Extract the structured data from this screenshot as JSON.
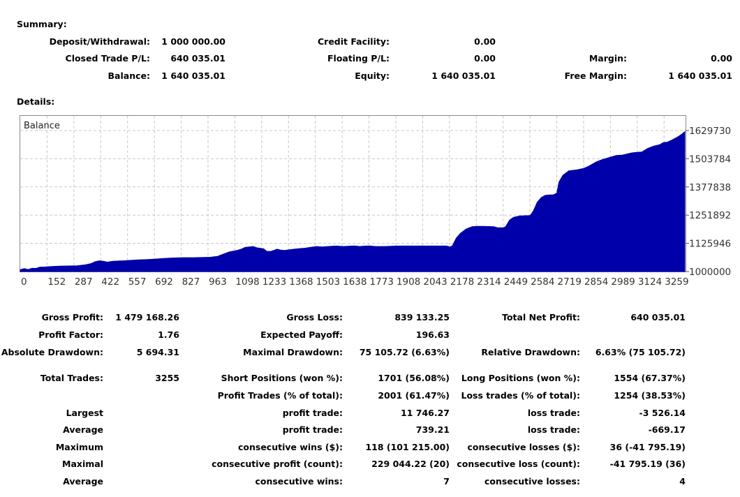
{
  "summary": {
    "title": "Summary:",
    "deposit_label": "Deposit/Withdrawal:",
    "deposit_value": "1 000 000.00",
    "credit_label": "Credit Facility:",
    "credit_value": "0.00",
    "closed_label": "Closed Trade P/L:",
    "closed_value": "640 035.01",
    "floating_label": "Floating P/L:",
    "floating_value": "0.00",
    "margin_label": "Margin:",
    "margin_value": "0.00",
    "balance_label": "Balance:",
    "balance_value": "1 640 035.01",
    "equity_label": "Equity:",
    "equity_value": "1 640 035.01",
    "free_margin_label": "Free Margin:",
    "free_margin_value": "1 640 035.01"
  },
  "details": {
    "title": "Details:"
  },
  "chart_data": {
    "type": "area",
    "title": "Balance",
    "color": "#0000AA",
    "grid": true,
    "x_ticks": [
      "0",
      "152",
      "287",
      "422",
      "557",
      "692",
      "827",
      "963",
      "1098",
      "1233",
      "1368",
      "1503",
      "1638",
      "1773",
      "1908",
      "2043",
      "2178",
      "2314",
      "2449",
      "2584",
      "2719",
      "2854",
      "2989",
      "3124",
      "3259"
    ],
    "y_ticks": [
      "1629730",
      "1503784",
      "1377838",
      "1251892",
      "1125946",
      "1000000"
    ],
    "ylim": [
      1000000,
      1629730
    ],
    "xlim": [
      0,
      3368
    ],
    "x": [
      0,
      20,
      40,
      60,
      80,
      100,
      120,
      152,
      200,
      287,
      330,
      360,
      380,
      400,
      422,
      440,
      470,
      520,
      557,
      600,
      650,
      692,
      720,
      760,
      827,
      880,
      963,
      1000,
      1030,
      1060,
      1098,
      1120,
      1140,
      1160,
      1180,
      1200,
      1215,
      1233,
      1250,
      1270,
      1290,
      1300,
      1320,
      1340,
      1368,
      1390,
      1410,
      1440,
      1470,
      1503,
      1530,
      1560,
      1600,
      1638,
      1680,
      1700,
      1720,
      1750,
      1773,
      1800,
      1850,
      1908,
      1950,
      2000,
      2043,
      2090,
      2130,
      2160,
      2178,
      2190,
      2210,
      2230,
      2260,
      2290,
      2314,
      2350,
      2400,
      2420,
      2449,
      2460,
      2480,
      2500,
      2530,
      2584,
      2600,
      2620,
      2640,
      2660,
      2680,
      2700,
      2719,
      2730,
      2750,
      2780,
      2820,
      2854,
      2880,
      2920,
      2950,
      2989,
      3020,
      3050,
      3080,
      3100,
      3124,
      3150,
      3180,
      3210,
      3240,
      3259,
      3280,
      3300,
      3330,
      3350,
      3368
    ],
    "y": [
      1008000,
      1013000,
      1009000,
      1015000,
      1014000,
      1020000,
      1020000,
      1022000,
      1024000,
      1026000,
      1030000,
      1036000,
      1044000,
      1048000,
      1046000,
      1042000,
      1046000,
      1048000,
      1050000,
      1052000,
      1054000,
      1056000,
      1058000,
      1060000,
      1062000,
      1062000,
      1064000,
      1068000,
      1078000,
      1088000,
      1094000,
      1100000,
      1108000,
      1110000,
      1112000,
      1106000,
      1104000,
      1102000,
      1090000,
      1090000,
      1096000,
      1100000,
      1096000,
      1094000,
      1098000,
      1100000,
      1102000,
      1104000,
      1108000,
      1112000,
      1110000,
      1112000,
      1114000,
      1112000,
      1114000,
      1114000,
      1112000,
      1114000,
      1114000,
      1112000,
      1112000,
      1114000,
      1114000,
      1114000,
      1114000,
      1114000,
      1114000,
      1114000,
      1110000,
      1115000,
      1150000,
      1170000,
      1190000,
      1200000,
      1202000,
      1202000,
      1200000,
      1195000,
      1196000,
      1200000,
      1230000,
      1242000,
      1248000,
      1250000,
      1270000,
      1310000,
      1330000,
      1340000,
      1342000,
      1342000,
      1350000,
      1400000,
      1430000,
      1450000,
      1454000,
      1460000,
      1470000,
      1490000,
      1500000,
      1510000,
      1518000,
      1520000,
      1526000,
      1530000,
      1532000,
      1534000,
      1550000,
      1560000,
      1566000,
      1576000,
      1578000,
      1586000,
      1600000,
      1612000,
      1625000
    ]
  },
  "stats": {
    "gross_profit_label": "Gross Profit:",
    "gross_profit_value": "1 479 168.26",
    "gross_loss_label": "Gross Loss:",
    "gross_loss_value": "839 133.25",
    "total_net_label": "Total Net Profit:",
    "total_net_value": "640 035.01",
    "profit_factor_label": "Profit Factor:",
    "profit_factor_value": "1.76",
    "expected_payoff_label": "Expected Payoff:",
    "expected_payoff_value": "196.63",
    "abs_dd_label": "Absolute Drawdown:",
    "abs_dd_value": "5 694.31",
    "max_dd_label": "Maximal Drawdown:",
    "max_dd_value": "75 105.72 (6.63%)",
    "rel_dd_label": "Relative Drawdown:",
    "rel_dd_value": "6.63% (75 105.72)",
    "total_trades_label": "Total Trades:",
    "total_trades_value": "3255",
    "short_label": "Short Positions (won %):",
    "short_value": "1701 (56.08%)",
    "long_label": "Long Positions (won %):",
    "long_value": "1554 (67.37%)",
    "profit_trades_label": "Profit Trades (% of total):",
    "profit_trades_value": "2001 (61.47%)",
    "loss_trades_label": "Loss trades (% of total):",
    "loss_trades_value": "1254 (38.53%)",
    "rows": [
      {
        "a": "Largest",
        "b": "profit trade:",
        "c": "11 746.27",
        "d": "loss trade:",
        "e": "-3 526.14"
      },
      {
        "a": "Average",
        "b": "profit trade:",
        "c": "739.21",
        "d": "loss trade:",
        "e": "-669.17"
      },
      {
        "a": "Maximum",
        "b": "consecutive wins ($):",
        "c": "118 (101 215.00)",
        "d": "consecutive losses ($):",
        "e": "36 (-41 795.19)"
      },
      {
        "a": "Maximal",
        "b": "consecutive profit (count):",
        "c": "229 044.22 (20)",
        "d": "consecutive loss (count):",
        "e": "-41 795.19 (36)"
      },
      {
        "a": "Average",
        "b": "consecutive wins:",
        "c": "7",
        "d": "consecutive losses:",
        "e": "4"
      }
    ]
  }
}
